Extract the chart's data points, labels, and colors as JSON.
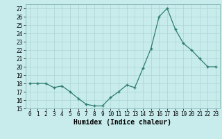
{
  "x": [
    0,
    1,
    2,
    3,
    4,
    5,
    6,
    7,
    8,
    9,
    10,
    11,
    12,
    13,
    14,
    15,
    16,
    17,
    18,
    19,
    20,
    21,
    22,
    23
  ],
  "y": [
    18,
    18,
    18,
    17.5,
    17.7,
    17,
    16.2,
    15.5,
    15.3,
    15.3,
    16.3,
    17,
    17.8,
    17.5,
    19.8,
    22.2,
    26,
    27,
    24.5,
    22.8,
    22,
    21,
    20,
    20
  ],
  "line_color": "#2e7d6e",
  "marker": "+",
  "bg_color": "#c8ecec",
  "grid_color": "#aad4d0",
  "xlabel": "Humidex (Indice chaleur)",
  "xlim": [
    -0.5,
    23.5
  ],
  "ylim": [
    15,
    27.5
  ],
  "yticks": [
    15,
    16,
    17,
    18,
    19,
    20,
    21,
    22,
    23,
    24,
    25,
    26,
    27
  ],
  "xticks": [
    0,
    1,
    2,
    3,
    4,
    5,
    6,
    7,
    8,
    9,
    10,
    11,
    12,
    13,
    14,
    15,
    16,
    17,
    18,
    19,
    20,
    21,
    22,
    23
  ],
  "tick_fontsize": 5.5,
  "xlabel_fontsize": 7.0
}
